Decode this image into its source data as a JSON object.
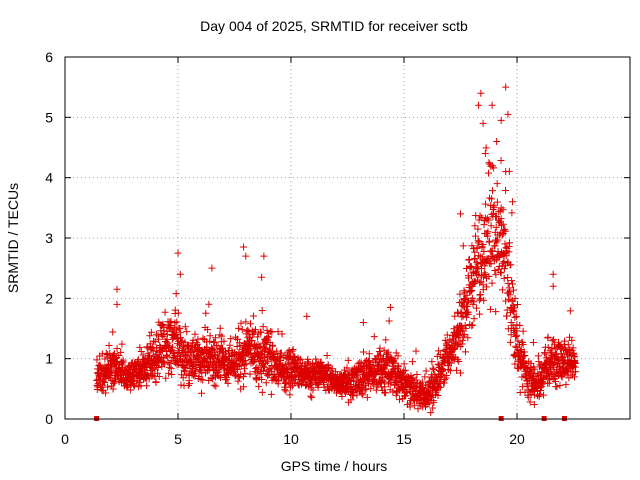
{
  "chart_data": {
    "type": "scatter",
    "title": "Day 004 of 2025, SRMTID for receiver sctb",
    "xlabel": "GPS time / hours",
    "ylabel": "SRMTID / TECUs",
    "xlim": [
      0,
      25
    ],
    "ylim": [
      0,
      6
    ],
    "x_ticks": [
      0,
      5,
      10,
      15,
      20
    ],
    "y_ticks": [
      0,
      1,
      2,
      3,
      4,
      5,
      6
    ],
    "x_tick_labels": [
      "0",
      "5",
      "10",
      "15",
      "20"
    ],
    "y_tick_labels": [
      "0",
      "1",
      "2",
      "3",
      "4",
      "5",
      "6"
    ],
    "grid": true,
    "marker": "+",
    "series": [
      {
        "name": "SRMTID",
        "color": "#dd0000",
        "envelope": {
          "x": [
            1.4,
            2.0,
            2.5,
            3.0,
            3.5,
            4.0,
            4.5,
            5.0,
            5.5,
            6.0,
            6.5,
            7.0,
            7.5,
            8.0,
            8.5,
            9.0,
            9.5,
            10.0,
            10.5,
            11.0,
            11.5,
            12.0,
            12.5,
            13.0,
            13.5,
            14.0,
            14.5,
            15.0,
            15.5,
            16.0,
            16.5,
            17.0,
            17.5,
            18.0,
            18.5,
            19.0,
            19.5,
            20.0,
            20.5,
            21.0,
            21.5,
            22.0,
            22.6
          ],
          "center": [
            0.65,
            0.85,
            0.75,
            0.7,
            0.8,
            1.05,
            1.25,
            1.2,
            1.0,
            0.95,
            1.0,
            0.95,
            0.9,
            1.15,
            1.0,
            1.05,
            0.8,
            0.85,
            0.75,
            0.75,
            0.7,
            0.6,
            0.6,
            0.7,
            0.75,
            0.85,
            0.75,
            0.6,
            0.45,
            0.35,
            0.7,
            1.1,
            1.45,
            2.2,
            2.8,
            3.1,
            2.6,
            1.2,
            0.6,
            0.65,
            1.0,
            0.9,
            0.95
          ],
          "spread": [
            0.3,
            0.4,
            0.3,
            0.3,
            0.4,
            0.5,
            0.6,
            0.65,
            0.5,
            0.5,
            0.55,
            0.45,
            0.45,
            0.7,
            0.6,
            0.55,
            0.4,
            0.4,
            0.35,
            0.35,
            0.3,
            0.25,
            0.3,
            0.35,
            0.4,
            0.45,
            0.4,
            0.35,
            0.3,
            0.3,
            0.4,
            0.5,
            0.7,
            0.9,
            1.2,
            1.3,
            1.1,
            0.6,
            0.4,
            0.4,
            0.45,
            0.4,
            0.4
          ]
        },
        "outliers": [
          {
            "x": 2.3,
            "y": 2.15
          },
          {
            "x": 2.3,
            "y": 1.9
          },
          {
            "x": 5.0,
            "y": 2.75
          },
          {
            "x": 5.1,
            "y": 2.4
          },
          {
            "x": 6.5,
            "y": 2.5
          },
          {
            "x": 7.9,
            "y": 2.85
          },
          {
            "x": 8.0,
            "y": 2.7
          },
          {
            "x": 8.8,
            "y": 2.7
          },
          {
            "x": 8.7,
            "y": 2.35
          },
          {
            "x": 10.7,
            "y": 1.7
          },
          {
            "x": 13.2,
            "y": 1.6
          },
          {
            "x": 14.4,
            "y": 1.85
          },
          {
            "x": 17.5,
            "y": 3.4
          },
          {
            "x": 18.3,
            "y": 5.2
          },
          {
            "x": 18.4,
            "y": 5.4
          },
          {
            "x": 18.5,
            "y": 4.9
          },
          {
            "x": 18.6,
            "y": 4.4
          },
          {
            "x": 18.9,
            "y": 5.2
          },
          {
            "x": 19.1,
            "y": 4.6
          },
          {
            "x": 19.3,
            "y": 4.95
          },
          {
            "x": 19.5,
            "y": 5.5
          },
          {
            "x": 19.6,
            "y": 5.05
          },
          {
            "x": 19.5,
            "y": 4.1
          },
          {
            "x": 19.3,
            "y": 3.5
          },
          {
            "x": 19.8,
            "y": 3.6
          },
          {
            "x": 21.6,
            "y": 2.4
          },
          {
            "x": 21.6,
            "y": 2.2
          }
        ],
        "zero_markers_x": [
          1.4,
          19.3,
          21.2,
          22.1
        ]
      }
    ]
  }
}
